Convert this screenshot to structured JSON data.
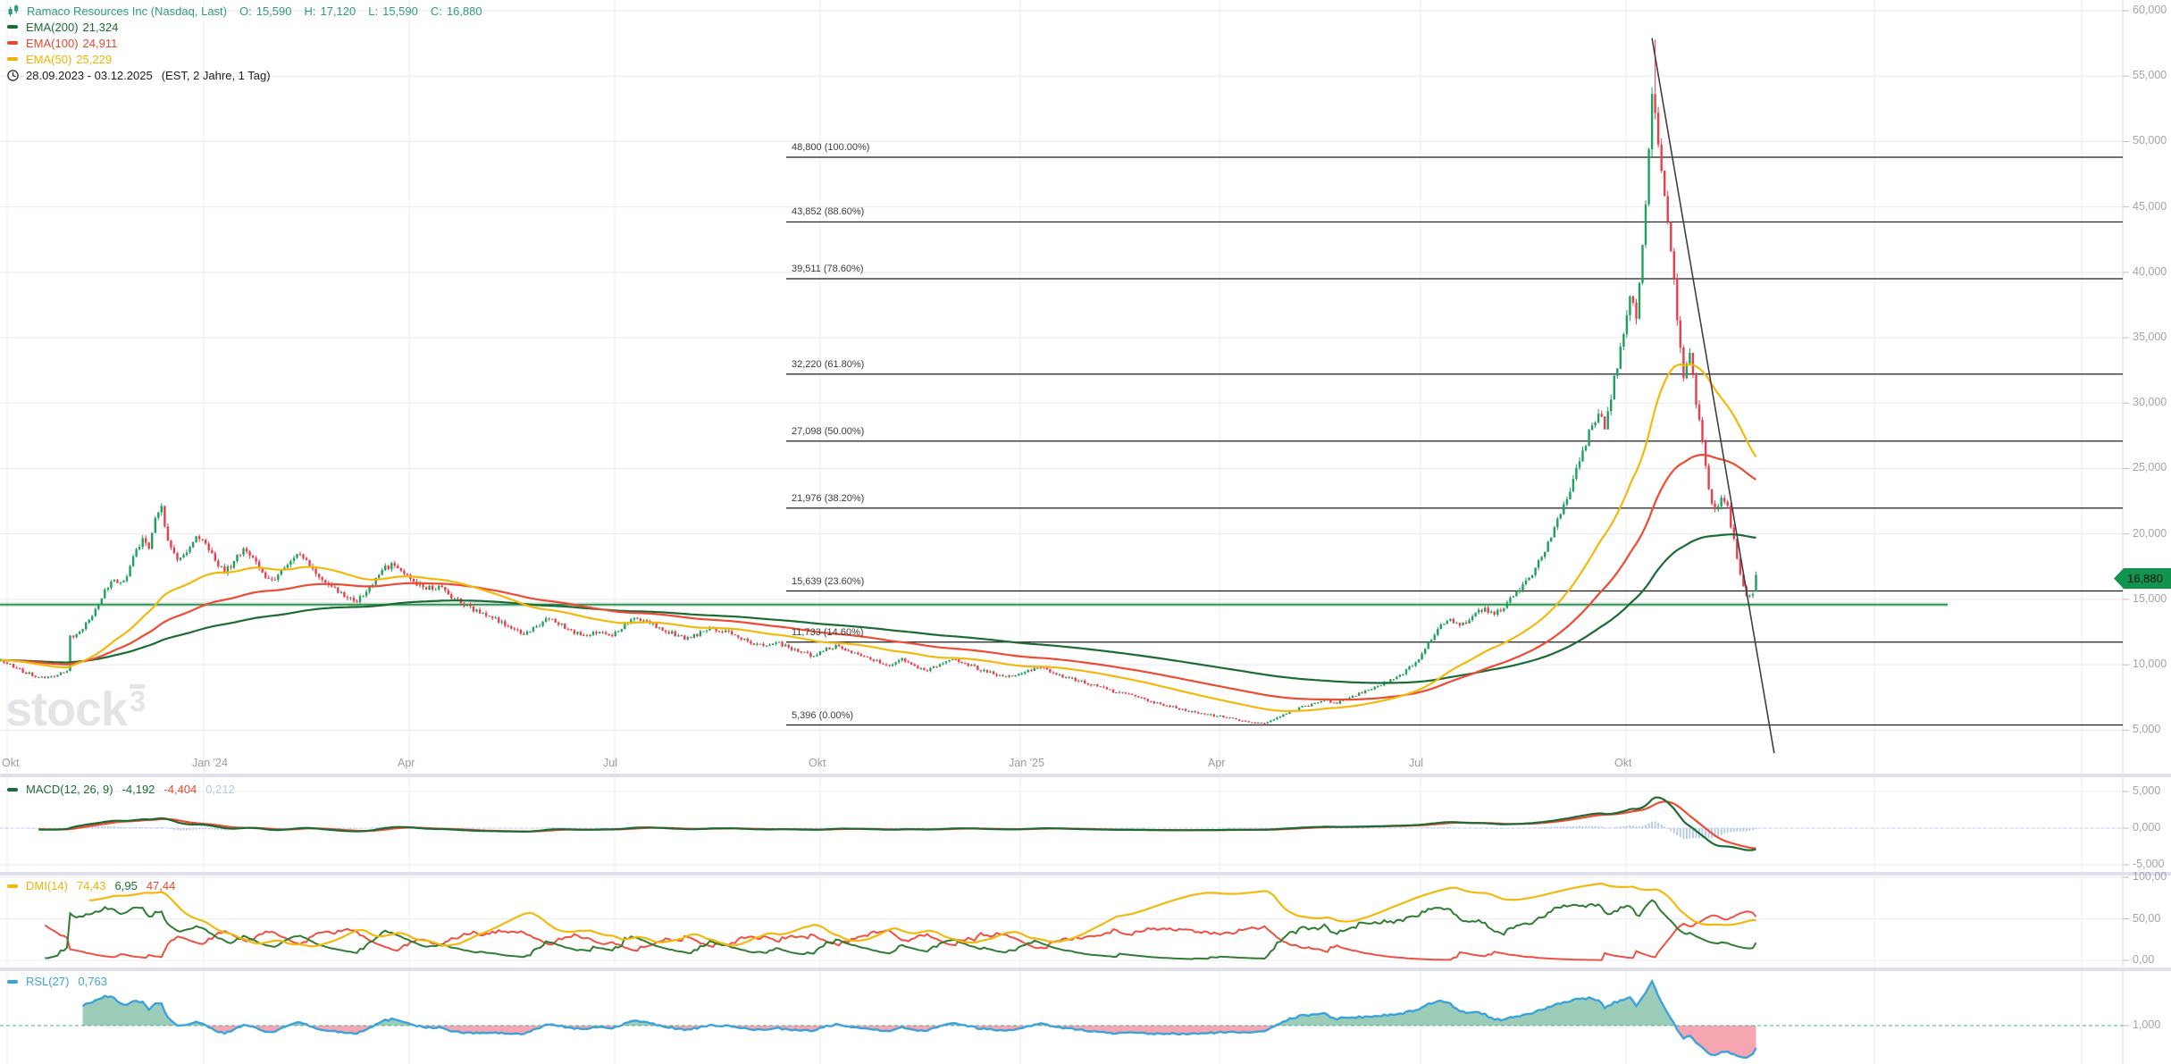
{
  "header": {
    "title": "Ramaco Resources Inc (Nasdaq, Last)",
    "ohlc": {
      "o_label": "O:",
      "o": "15,590",
      "h_label": "H:",
      "h": "17,120",
      "l_label": "L:",
      "l": "15,590",
      "c_label": "C:",
      "c": "16,880"
    },
    "indicators": [
      {
        "name": "EMA(200)",
        "value": "21,324",
        "color": "#1b6b34"
      },
      {
        "name": "EMA(100)",
        "value": "24,911",
        "color": "#ea4630"
      },
      {
        "name": "EMA(50)",
        "value": "25,229",
        "color": "#ecb302"
      }
    ],
    "date_range": "28.09.2023 - 03.12.2025",
    "period_info": "(EST, 2 Jahre, 1 Tag)"
  },
  "panels": {
    "macd": {
      "label": "MACD(12, 26, 9)",
      "v1": "-4,192",
      "v2": "-4,404",
      "v3": "0,212"
    },
    "dmi": {
      "label": "DMI(14)",
      "v1": "74,43",
      "v2": "6,95",
      "v3": "47,44"
    },
    "rsl": {
      "label": "RSL(27)",
      "v1": "0,763"
    }
  },
  "watermark": {
    "text": "stock",
    "sup": "3"
  },
  "price_badge": "16,880",
  "axes": {
    "price_labels": [
      "60,000",
      "55,000",
      "50,000",
      "45,000",
      "40,000",
      "35,000",
      "30,000",
      "25,000",
      "20,000",
      "15,000",
      "10,000",
      "5,000"
    ],
    "time_labels": [
      [
        "Okt",
        8
      ],
      [
        "Jan '24",
        228
      ],
      [
        "Apr",
        458
      ],
      [
        "Jul",
        688
      ],
      [
        "Okt",
        918
      ],
      [
        "Jan '25",
        1142
      ],
      [
        "Apr",
        1365
      ],
      [
        "Jul",
        1590
      ],
      [
        "Okt",
        1820
      ]
    ],
    "macd_labels": [
      [
        "5,000",
        5000
      ],
      [
        "0,000",
        0
      ],
      [
        "-5,000",
        -5000
      ]
    ],
    "dmi_labels": [
      [
        "100,00",
        100
      ],
      [
        "50,00",
        50
      ],
      [
        "0,00",
        0
      ]
    ],
    "rsl_labels": [
      [
        "1,000",
        1
      ]
    ]
  },
  "chart_data": {
    "type": "candlestick",
    "symbol": "Ramaco Resources Inc",
    "exchange": "Nasdaq",
    "interval": "1 Tag",
    "range": "28.09.2023 - 03.12.2025",
    "last_ohlc": {
      "open": 15590,
      "high": 17120,
      "low": 15590,
      "close": 16880
    },
    "y_axis": {
      "min": 3200,
      "max": 60800,
      "tick_step": 5000
    },
    "grid": true,
    "fibonacci": [
      {
        "label": "48,800 (100.00%)",
        "price": 48800
      },
      {
        "label": "43,852 (88.60%)",
        "price": 43852
      },
      {
        "label": "39,511 (78.60%)",
        "price": 39511
      },
      {
        "label": "32,220 (61.80%)",
        "price": 32220
      },
      {
        "label": "27,098 (50.00%)",
        "price": 27098
      },
      {
        "label": "21,976 (38.20%)",
        "price": 21976
      },
      {
        "label": "15,639 (23.60%)",
        "price": 15639
      },
      {
        "label": "11,733 (14.60%)",
        "price": 11733
      },
      {
        "label": "5,396 (0.00%)",
        "price": 5396
      }
    ],
    "support_line_price": 14600,
    "trendline": {
      "from_day": 524,
      "from_price": 57900,
      "to_day": 564,
      "to_price": 1500
    },
    "emas": [
      {
        "period": 50,
        "last": 25229,
        "color": "#f2b90d"
      },
      {
        "period": 100,
        "last": 24911,
        "color": "#ee4b33"
      },
      {
        "period": 200,
        "last": 21324,
        "color": "#1d6b34"
      }
    ],
    "macd": {
      "fast": 12,
      "slow": 26,
      "signal": 9,
      "last_macd": -4192,
      "last_signal": -4404,
      "last_hist": 212
    },
    "dmi": {
      "period": 14,
      "last_adx": 74.43,
      "last_plus_di": 6.95,
      "last_minus_di": 47.44
    },
    "rsl": {
      "period": 27,
      "last": 0.763
    },
    "colors": {
      "up": "#1fa05c",
      "down": "#ec3d4c",
      "hist": "#b3c9e6",
      "macd_line": "#1d6b34",
      "signal_line": "#ee4b33",
      "adx": "#f2b90d",
      "plus_di": "#2e7d32",
      "minus_di": "#ef5043",
      "rsl_line": "#3ba2db",
      "rsl_fill_up": "#9ccdb9",
      "rsl_fill_down": "#f6a6b1",
      "support": "#2f8f52",
      "fib": "#1c1c1c",
      "trend": "#3f3f3f",
      "badge": "#12934f"
    },
    "days": 558,
    "price_keyframes": [
      [
        0,
        10300
      ],
      [
        6,
        9600
      ],
      [
        12,
        9000
      ],
      [
        18,
        9200
      ],
      [
        21,
        9500
      ],
      [
        22,
        12100
      ],
      [
        26,
        12700
      ],
      [
        29,
        13900
      ],
      [
        33,
        15600
      ],
      [
        36,
        16600
      ],
      [
        39,
        16200
      ],
      [
        42,
        18300
      ],
      [
        45,
        19600
      ],
      [
        47,
        18800
      ],
      [
        49,
        21200
      ],
      [
        51,
        21900
      ],
      [
        53,
        19600
      ],
      [
        56,
        18100
      ],
      [
        59,
        18700
      ],
      [
        62,
        19800
      ],
      [
        65,
        19200
      ],
      [
        68,
        17900
      ],
      [
        71,
        17100
      ],
      [
        74,
        17900
      ],
      [
        77,
        18800
      ],
      [
        80,
        18200
      ],
      [
        83,
        17000
      ],
      [
        86,
        16300
      ],
      [
        89,
        17200
      ],
      [
        92,
        18000
      ],
      [
        95,
        18600
      ],
      [
        98,
        17500
      ],
      [
        101,
        16700
      ],
      [
        105,
        16000
      ],
      [
        109,
        15300
      ],
      [
        113,
        14900
      ],
      [
        116,
        15700
      ],
      [
        119,
        16600
      ],
      [
        122,
        17400
      ],
      [
        125,
        17700
      ],
      [
        128,
        17100
      ],
      [
        131,
        16400
      ],
      [
        135,
        15800
      ],
      [
        139,
        16000
      ],
      [
        143,
        15200
      ],
      [
        147,
        14600
      ],
      [
        151,
        14100
      ],
      [
        155,
        13700
      ],
      [
        159,
        13200
      ],
      [
        163,
        12700
      ],
      [
        166,
        12300
      ],
      [
        170,
        12900
      ],
      [
        174,
        13600
      ],
      [
        178,
        13000
      ],
      [
        182,
        12500
      ],
      [
        186,
        12100
      ],
      [
        190,
        12600
      ],
      [
        194,
        12200
      ],
      [
        198,
        13100
      ],
      [
        202,
        13600
      ],
      [
        206,
        13100
      ],
      [
        210,
        12700
      ],
      [
        214,
        12300
      ],
      [
        218,
        12000
      ],
      [
        222,
        12400
      ],
      [
        226,
        12800
      ],
      [
        230,
        12500
      ],
      [
        234,
        12100
      ],
      [
        238,
        11700
      ],
      [
        242,
        11400
      ],
      [
        246,
        11800
      ],
      [
        250,
        11300
      ],
      [
        254,
        10900
      ],
      [
        258,
        10700
      ],
      [
        262,
        11200
      ],
      [
        266,
        11500
      ],
      [
        270,
        11000
      ],
      [
        274,
        10600
      ],
      [
        278,
        10300
      ],
      [
        282,
        10000
      ],
      [
        286,
        10400
      ],
      [
        290,
        9900
      ],
      [
        294,
        9600
      ],
      [
        298,
        10100
      ],
      [
        302,
        10500
      ],
      [
        306,
        10100
      ],
      [
        310,
        9700
      ],
      [
        314,
        9400
      ],
      [
        318,
        9100
      ],
      [
        322,
        9200
      ],
      [
        326,
        9600
      ],
      [
        330,
        9800
      ],
      [
        334,
        9400
      ],
      [
        338,
        9000
      ],
      [
        342,
        8800
      ],
      [
        346,
        8500
      ],
      [
        350,
        8200
      ],
      [
        354,
        7900
      ],
      [
        358,
        7700
      ],
      [
        362,
        7400
      ],
      [
        366,
        7100
      ],
      [
        370,
        6900
      ],
      [
        374,
        6600
      ],
      [
        378,
        6400
      ],
      [
        382,
        6200
      ],
      [
        386,
        6100
      ],
      [
        390,
        5900
      ],
      [
        394,
        5700
      ],
      [
        398,
        5600
      ],
      [
        401,
        5550
      ],
      [
        404,
        5900
      ],
      [
        408,
        6300
      ],
      [
        412,
        6700
      ],
      [
        416,
        7000
      ],
      [
        420,
        7300
      ],
      [
        424,
        7100
      ],
      [
        428,
        7500
      ],
      [
        432,
        7900
      ],
      [
        436,
        8300
      ],
      [
        440,
        8700
      ],
      [
        444,
        9200
      ],
      [
        447,
        9800
      ],
      [
        450,
        10400
      ],
      [
        453,
        11600
      ],
      [
        456,
        12800
      ],
      [
        459,
        13500
      ],
      [
        462,
        13200
      ],
      [
        465,
        13000
      ],
      [
        468,
        13900
      ],
      [
        471,
        14300
      ],
      [
        474,
        13800
      ],
      [
        477,
        14500
      ],
      [
        480,
        15200
      ],
      [
        483,
        16100
      ],
      [
        486,
        17000
      ],
      [
        489,
        18200
      ],
      [
        492,
        19800
      ],
      [
        495,
        21500
      ],
      [
        498,
        23400
      ],
      [
        501,
        25600
      ],
      [
        504,
        27800
      ],
      [
        507,
        29300
      ],
      [
        509,
        28100
      ],
      [
        511,
        30500
      ],
      [
        513,
        33000
      ],
      [
        515,
        35600
      ],
      [
        517,
        38400
      ],
      [
        519,
        36800
      ],
      [
        521,
        42500
      ],
      [
        523,
        49000
      ],
      [
        524,
        53500
      ],
      [
        525,
        51800
      ],
      [
        526,
        50200
      ],
      [
        528,
        46200
      ],
      [
        530,
        41800
      ],
      [
        532,
        36400
      ],
      [
        534,
        31800
      ],
      [
        536,
        33600
      ],
      [
        538,
        30200
      ],
      [
        540,
        26800
      ],
      [
        542,
        23200
      ],
      [
        544,
        21600
      ],
      [
        546,
        22600
      ],
      [
        548,
        21900
      ],
      [
        550,
        19600
      ],
      [
        552,
        16800
      ],
      [
        554,
        15200
      ],
      [
        556,
        15400
      ],
      [
        557,
        16880
      ]
    ]
  }
}
